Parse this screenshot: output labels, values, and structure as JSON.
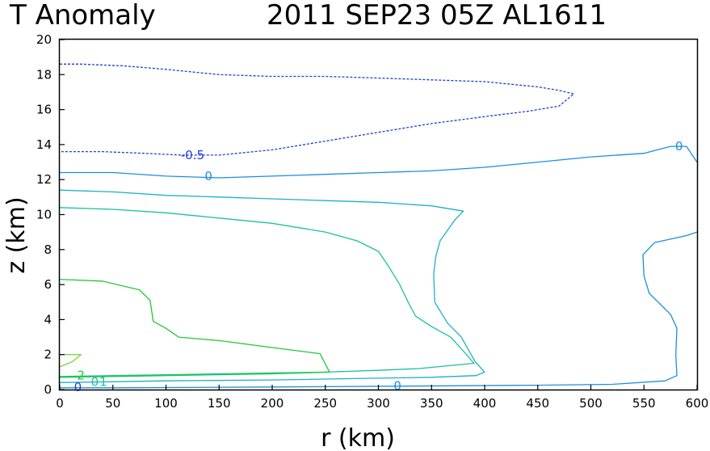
{
  "chart_data": {
    "type": "contour",
    "title_left": "T Anomaly",
    "title_right": "2011 SEP23 05Z  AL1611",
    "xlabel": "r (km)",
    "ylabel": "z (km)",
    "xlim": [
      0,
      600
    ],
    "ylim": [
      0,
      20
    ],
    "xticks": [
      0,
      50,
      100,
      150,
      200,
      250,
      300,
      350,
      400,
      450,
      500,
      550,
      600
    ],
    "yticks": [
      0,
      2,
      4,
      6,
      8,
      10,
      12,
      14,
      16,
      18,
      20
    ],
    "contours": [
      {
        "level": "-0.5",
        "color": "#1f3fd6",
        "dashed": true,
        "points": [
          [
            0,
            18.6
          ],
          [
            20,
            18.6
          ],
          [
            60,
            18.5
          ],
          [
            100,
            18.3
          ],
          [
            150,
            18.0
          ],
          [
            200,
            17.9
          ],
          [
            250,
            17.9
          ],
          [
            300,
            17.8
          ],
          [
            350,
            17.7
          ],
          [
            400,
            17.6
          ],
          [
            450,
            17.3
          ],
          [
            470,
            17.1
          ],
          [
            484,
            16.9
          ],
          [
            470,
            16.2
          ],
          [
            440,
            15.9
          ],
          [
            400,
            15.6
          ],
          [
            350,
            15.2
          ],
          [
            300,
            14.7
          ],
          [
            250,
            14.2
          ],
          [
            200,
            13.7
          ],
          [
            150,
            13.4
          ],
          [
            115,
            13.4
          ],
          [
            80,
            13.5
          ],
          [
            40,
            13.6
          ],
          [
            0,
            13.6
          ]
        ]
      },
      {
        "level": "0",
        "color": "#1a8fe0",
        "dashed": false,
        "points": [
          [
            0,
            12.4
          ],
          [
            50,
            12.4
          ],
          [
            100,
            12.2
          ],
          [
            150,
            12.1
          ],
          [
            200,
            12.2
          ],
          [
            250,
            12.3
          ],
          [
            300,
            12.4
          ],
          [
            350,
            12.5
          ],
          [
            400,
            12.7
          ],
          [
            450,
            13.0
          ],
          [
            500,
            13.3
          ],
          [
            550,
            13.5
          ],
          [
            575,
            13.9
          ],
          [
            590,
            13.9
          ],
          [
            600,
            13.0
          ]
        ]
      },
      {
        "level": "0",
        "color": "#1a8fe0",
        "dashed": false,
        "points": [
          [
            600,
            9.0
          ],
          [
            590,
            8.8
          ],
          [
            560,
            8.4
          ],
          [
            549,
            7.7
          ],
          [
            550,
            6.5
          ],
          [
            555,
            5.5
          ],
          [
            575,
            4.3
          ],
          [
            581,
            3.5
          ],
          [
            580,
            2.0
          ],
          [
            581,
            0.8
          ],
          [
            570,
            0.5
          ],
          [
            520,
            0.3
          ],
          [
            450,
            0.25
          ],
          [
            330,
            0.2
          ],
          [
            200,
            0.15
          ],
          [
            50,
            0.1
          ],
          [
            0,
            0.1
          ]
        ]
      },
      {
        "level": "0.1",
        "color": "#1cb0c8",
        "dashed": false,
        "points": [
          [
            0,
            11.4
          ],
          [
            50,
            11.3
          ],
          [
            100,
            11.1
          ],
          [
            150,
            11.0
          ],
          [
            200,
            10.9
          ],
          [
            250,
            10.8
          ],
          [
            300,
            10.7
          ],
          [
            350,
            10.5
          ],
          [
            380,
            10.2
          ],
          [
            372,
            9.7
          ],
          [
            358,
            8.5
          ],
          [
            354,
            7.6
          ],
          [
            352,
            6.6
          ],
          [
            353,
            5.0
          ],
          [
            365,
            3.8
          ],
          [
            378,
            3.0
          ],
          [
            391,
            1.6
          ],
          [
            400,
            1.0
          ],
          [
            392,
            0.8
          ],
          [
            350,
            0.7
          ],
          [
            300,
            0.65
          ],
          [
            200,
            0.55
          ],
          [
            100,
            0.5
          ],
          [
            50,
            0.45
          ],
          [
            0,
            0.4
          ]
        ]
      },
      {
        "level": "0.5",
        "color": "#1cc0a0",
        "dashed": false,
        "points": [
          [
            0,
            10.4
          ],
          [
            50,
            10.3
          ],
          [
            100,
            10.1
          ],
          [
            150,
            9.8
          ],
          [
            200,
            9.5
          ],
          [
            250,
            9.0
          ],
          [
            280,
            8.5
          ],
          [
            300,
            7.9
          ],
          [
            310,
            7.0
          ],
          [
            320,
            6.0
          ],
          [
            328,
            5.0
          ],
          [
            335,
            4.2
          ],
          [
            350,
            3.6
          ],
          [
            368,
            3.0
          ],
          [
            380,
            2.2
          ],
          [
            390,
            1.5
          ],
          [
            338,
            1.2
          ],
          [
            300,
            1.1
          ],
          [
            250,
            1.0
          ],
          [
            200,
            0.95
          ],
          [
            150,
            0.9
          ],
          [
            100,
            0.85
          ],
          [
            50,
            0.8
          ],
          [
            0,
            0.75
          ]
        ]
      },
      {
        "level": "1",
        "color": "#1ec83a",
        "dashed": false,
        "points": [
          [
            0,
            6.3
          ],
          [
            40,
            6.2
          ],
          [
            75,
            5.7
          ],
          [
            85,
            5.1
          ],
          [
            88,
            3.9
          ],
          [
            100,
            3.5
          ],
          [
            112,
            3.0
          ],
          [
            150,
            2.8
          ],
          [
            200,
            2.4
          ],
          [
            245,
            2.05
          ],
          [
            254,
            1.0
          ],
          [
            200,
            0.9
          ],
          [
            150,
            0.85
          ],
          [
            100,
            0.8
          ],
          [
            50,
            0.75
          ],
          [
            0,
            0.7
          ]
        ]
      },
      {
        "level": "2",
        "color": "#7ed63a",
        "dashed": false,
        "points": [
          [
            0,
            2.0
          ],
          [
            20,
            2.0
          ],
          [
            12,
            1.6
          ],
          [
            0,
            1.3
          ]
        ]
      }
    ],
    "contour_labels": [
      {
        "text": "-0.5",
        "x": 125,
        "y": 13.4,
        "color": "#1f3fd6"
      },
      {
        "text": "0",
        "x": 140,
        "y": 12.2,
        "color": "#1a8fe0"
      },
      {
        "text": "0",
        "x": 583,
        "y": 13.9,
        "color": "#1a8fe0"
      },
      {
        "text": "0",
        "x": 318,
        "y": 0.2,
        "color": "#1a8fe0"
      },
      {
        "text": "2",
        "x": 20,
        "y": 0.8,
        "color": "#1ec83a"
      },
      {
        "text": "0",
        "x": 33,
        "y": 0.45,
        "color": "#1cc0a0"
      },
      {
        "text": "1",
        "x": 41,
        "y": 0.45,
        "color": "#1cc0a0"
      },
      {
        "text": "0",
        "x": 17,
        "y": 0.15,
        "color": "#1f3fd6"
      }
    ]
  }
}
